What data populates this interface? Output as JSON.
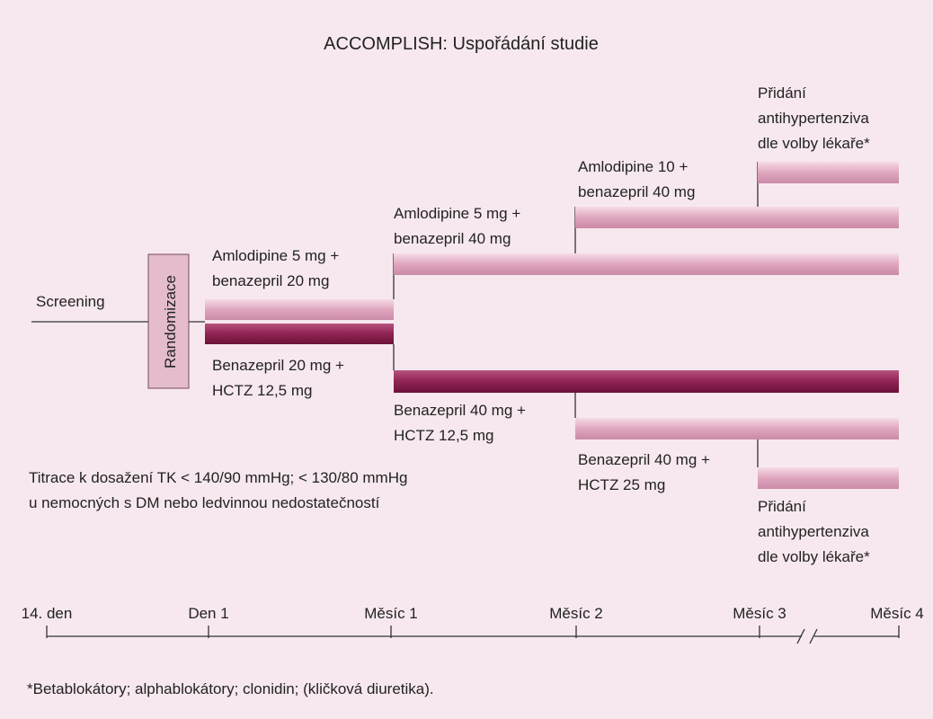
{
  "title": "ACCOMPLISH: Uspořádání studie",
  "screening": "Screening",
  "randomization": "Randomizace",
  "arm_a": {
    "step1": [
      "Amlodipine 5 mg +",
      "benazepril 20 mg"
    ],
    "step2": [
      "Amlodipine 5 mg +",
      "benazepril 40 mg"
    ],
    "step3": [
      "Amlodipine 10 +",
      "benazepril 40 mg"
    ],
    "step4": [
      "Přidání",
      "antihypertenziva",
      "dle volby lékaře*"
    ]
  },
  "arm_b": {
    "step1": [
      "Benazepril 20 mg +",
      "HCTZ 12,5 mg"
    ],
    "step2": [
      "Benazepril 40 mg +",
      "HCTZ 12,5 mg"
    ],
    "step3": [
      "Benazepril 40 mg +",
      "HCTZ 25 mg"
    ],
    "step4": [
      "Přidání",
      "antihypertenziva",
      "dle volby lékaře*"
    ]
  },
  "titration": [
    "Titrace k dosažení TK < 140/90 mmHg; < 130/80 mmHg",
    "u nemocných s DM nebo ledvinnou nedostatečností"
  ],
  "timeline": [
    "14. den",
    "Den 1",
    "Měsíc 1",
    "Měsíc 2",
    "Měsíc 3",
    "Měsíc 4"
  ],
  "footnote": "*Betablokátory; alphablokátory; clonidin; (kličková diuretika)."
}
